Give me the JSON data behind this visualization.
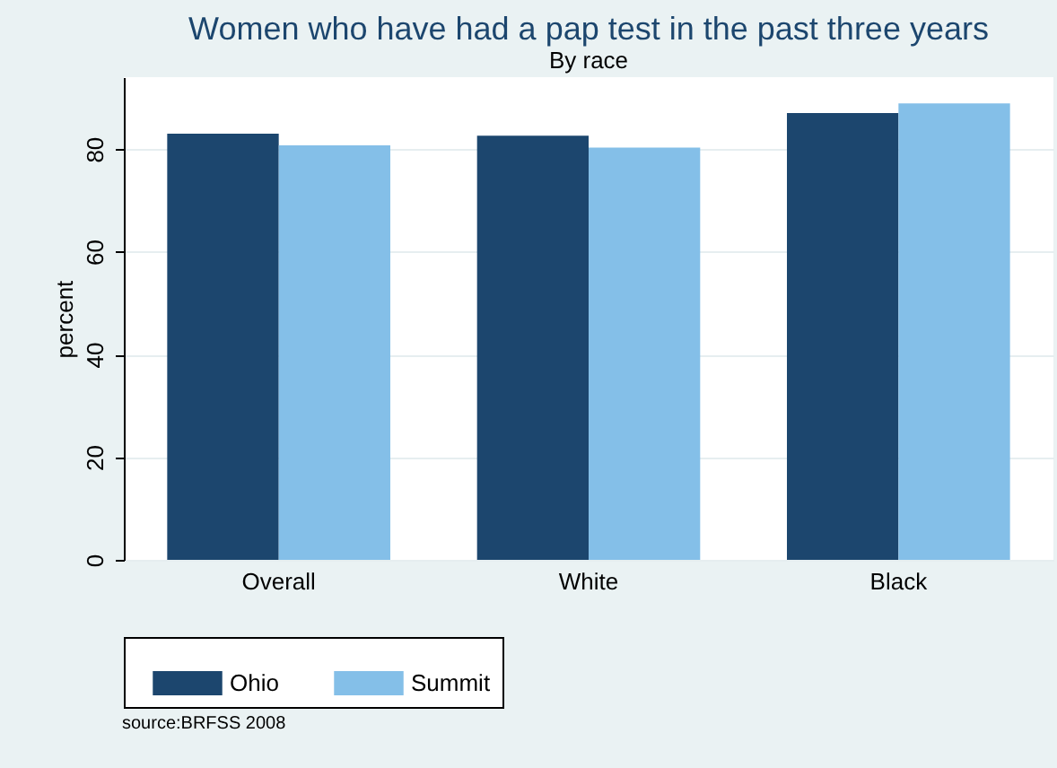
{
  "chart_data": {
    "type": "bar",
    "title": "Women who have had a pap test in the past three years",
    "subtitle": "By race",
    "ylabel": "percent",
    "categories": [
      "Overall",
      "White",
      "Black"
    ],
    "series": [
      {
        "name": "Ohio",
        "color": "#1c466e",
        "values": [
          83.0,
          82.6,
          87.0
        ]
      },
      {
        "name": "Summit",
        "color": "#84bfe8",
        "values": [
          80.7,
          80.3,
          88.9
        ]
      }
    ],
    "ylim": [
      0,
      94
    ],
    "yticks": [
      0,
      20,
      40,
      60,
      80
    ],
    "grid": "y",
    "legend": "bottom",
    "annotations": [
      "source:BRFSS 2008"
    ]
  }
}
